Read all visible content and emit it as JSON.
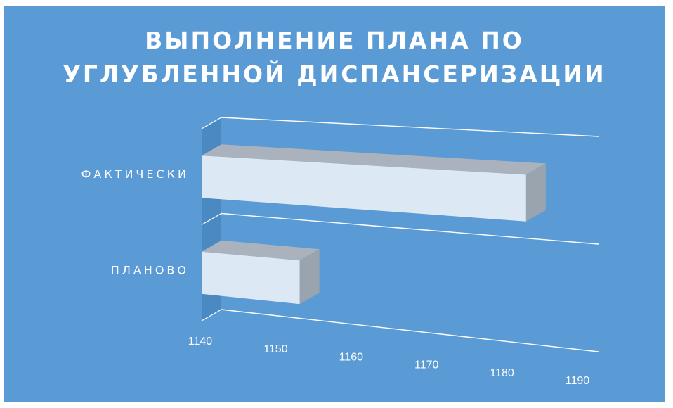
{
  "chart_data": {
    "type": "bar",
    "orientation": "horizontal",
    "style": "3d",
    "title": "ВЫПОЛНЕНИЕ ПЛАНА ПО УГЛУБЛЕННОЙ ДИСПАНСЕРИЗАЦИИ",
    "title_lines": [
      "ВЫПОЛНЕНИЕ ПЛАНА ПО",
      "УГЛУБЛЕННОЙ ДИСПАНСЕРИЗАЦИИ"
    ],
    "categories": [
      "ПЛАНОВО",
      "ФАКТИЧЕСКИ"
    ],
    "values": [
      1153,
      1183
    ],
    "xlim": [
      1140,
      1190
    ],
    "x_ticks": [
      1140,
      1150,
      1160,
      1170,
      1180,
      1190
    ],
    "x_tick_labels": [
      "1140",
      "1150",
      "1160",
      "1170",
      "1180",
      "1190"
    ],
    "grid": true,
    "legend": "none"
  },
  "colors": {
    "background": "#5b9bd5",
    "bar_face": "#dde8f5",
    "bar_top": "#a9b2bd",
    "bar_side": "#99a4ae",
    "wall": "#4b89c2",
    "gridline": "#ffffff",
    "text": "#ffffff"
  }
}
